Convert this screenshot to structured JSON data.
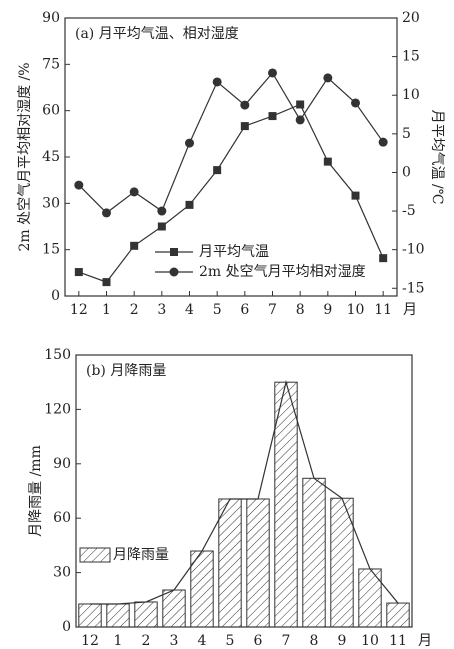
{
  "chart_data": [
    {
      "type": "line",
      "title": "(a) 月平均气温、相对湿度",
      "categories": [
        "12",
        "1",
        "2",
        "3",
        "4",
        "5",
        "6",
        "7",
        "8",
        "9",
        "10",
        "11"
      ],
      "x_label": "月",
      "y_label": "2m 处空气月平均相对湿度 /%",
      "y2_label": "月平均气温 /℃",
      "ylim": [
        0,
        90
      ],
      "yticks": [
        0,
        15,
        30,
        45,
        60,
        75,
        90
      ],
      "y2lim": [
        -16,
        20
      ],
      "y2ticks": [
        -15,
        -10,
        -5,
        0,
        5,
        10,
        15,
        20
      ],
      "series": [
        {
          "name": "月平均气温",
          "marker": "square",
          "axis": "y2",
          "color": "#333333",
          "values": [
            -12.9,
            -14.2,
            -9.5,
            -7.0,
            -4.2,
            0.3,
            6.0,
            7.3,
            8.8,
            1.4,
            -3.0,
            -11.1
          ]
        },
        {
          "name": "2m 处空气月平均相对湿度",
          "marker": "circle",
          "color": "#333333",
          "values": [
            35.9,
            26.9,
            33.7,
            27.5,
            49.5,
            69.3,
            61.8,
            72.2,
            57.0,
            70.6,
            62.5,
            49.8
          ]
        }
      ]
    },
    {
      "type": "bar",
      "title": "(b) 月降雨量",
      "categories": [
        "12",
        "1",
        "2",
        "3",
        "4",
        "5",
        "6",
        "7",
        "8",
        "9",
        "10",
        "11"
      ],
      "x_label": "月",
      "y_label": "月降雨量 /mm",
      "ylim": [
        0,
        150
      ],
      "yticks": [
        0,
        30,
        60,
        90,
        120,
        150
      ],
      "series": [
        {
          "name": "月降雨量",
          "color": "#333333",
          "values": [
            12.7,
            12.7,
            13.8,
            20.4,
            41.9,
            70.6,
            70.6,
            135,
            82,
            71,
            32,
            13.2
          ]
        }
      ]
    }
  ]
}
